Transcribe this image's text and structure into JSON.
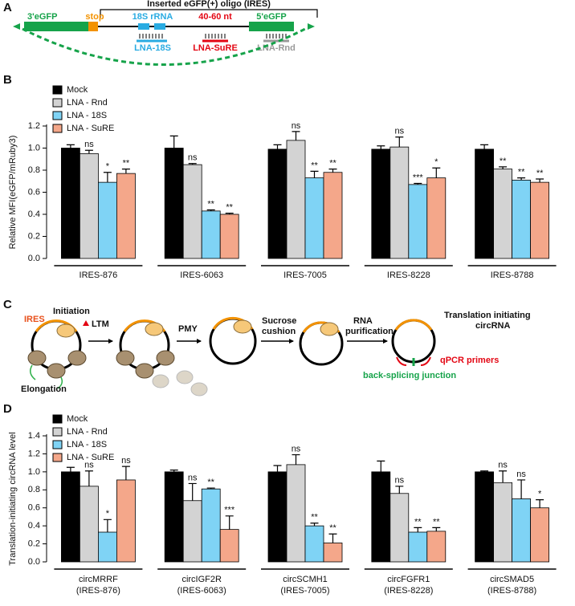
{
  "panel_a": {
    "letter": "A",
    "title": "Inserted eGFP(+) oligo (IRES)",
    "labels": {
      "egfp3": "3'eGFP",
      "stop": "stop",
      "rrna": "18S rRNA",
      "nt": "40-60 nt",
      "egfp5": "5'eGFP",
      "lna18s": "LNA-18S",
      "lnasure": "LNA-SuRE",
      "lnarnd": "LNA-Rnd"
    }
  },
  "panel_c": {
    "letter": "C",
    "labels": {
      "ires": "IRES",
      "initiation": "Initiation",
      "ltm": "LTM",
      "pmy": "PMY",
      "sucrose1": "Sucrose",
      "sucrose2": "cushion",
      "rna1": "RNA",
      "rna2": "purification",
      "trans1": "Translation initiating",
      "trans2": "circRNA",
      "qpcr": "qPCR primers",
      "junction": "back-splicing junction",
      "elongation": "Elongation"
    }
  },
  "chart_data": [
    {
      "type": "bar",
      "panel": "B",
      "y_label": "Relative MFI(eGFP/mRuby3)",
      "categories": [
        "IRES-876",
        "IRES-6063",
        "IRES-7005",
        "IRES-8228",
        "IRES-8788"
      ],
      "ylim": [
        0,
        1.2
      ],
      "yticks": [
        {
          "value": 0,
          "label": "0.0"
        },
        0.2,
        0.4,
        0.6,
        0.8,
        {
          "value": 1,
          "label": "1.0"
        },
        1.2
      ],
      "series": [
        {
          "name": "Mock",
          "color": "#000000",
          "values": [
            1.0,
            1.0,
            0.99,
            0.99,
            0.99
          ],
          "errors": [
            0.03,
            0.11,
            0.04,
            0.03,
            0.04
          ]
        },
        {
          "name": "LNA - Rnd",
          "color": "#d3d3d3",
          "values": [
            0.95,
            0.85,
            1.07,
            1.01,
            0.81
          ],
          "errors": [
            0.03,
            0.01,
            0.08,
            0.09,
            0.02
          ],
          "annotations": [
            "ns",
            "ns",
            "ns",
            "ns",
            "**"
          ]
        },
        {
          "name": "LNA - 18S",
          "color": "#7fd3f5",
          "values": [
            0.69,
            0.43,
            0.73,
            0.67,
            0.71
          ],
          "errors": [
            0.09,
            0.01,
            0.06,
            0.01,
            0.02
          ],
          "annotations": [
            "*",
            "**",
            "**",
            "***",
            "**"
          ]
        },
        {
          "name": "LNA - SuRE",
          "color": "#f4a78a",
          "values": [
            0.77,
            0.4,
            0.78,
            0.73,
            0.69
          ],
          "errors": [
            0.04,
            0.01,
            0.03,
            0.09,
            0.03
          ],
          "annotations": [
            "**",
            "**",
            "**",
            "*",
            "**"
          ]
        }
      ]
    },
    {
      "type": "bar",
      "panel": "D",
      "y_label": "Translation-initiating circRNA level",
      "categories": [
        "circMRRF",
        "circIGF2R",
        "circSCMH1",
        "circFGFR1",
        "circSMAD5"
      ],
      "category_sublabels": [
        "(IRES-876)",
        "(IRES-6063)",
        "(IRES-7005)",
        "(IRES-8228)",
        "(IRES-8788)"
      ],
      "ylim": [
        0,
        1.4
      ],
      "yticks": [
        {
          "value": 0,
          "label": "0.0"
        },
        0.2,
        0.4,
        0.6,
        0.8,
        {
          "value": 1,
          "label": "1.0"
        },
        1.2,
        1.4
      ],
      "series": [
        {
          "name": "Mock",
          "color": "#000000",
          "values": [
            1.0,
            1.0,
            1.0,
            1.0,
            1.0
          ],
          "errors": [
            0.05,
            0.02,
            0.07,
            0.12,
            0.01
          ]
        },
        {
          "name": "LNA - Rnd",
          "color": "#d3d3d3",
          "values": [
            0.84,
            0.68,
            1.08,
            0.76,
            0.88
          ],
          "errors": [
            0.17,
            0.19,
            0.11,
            0.08,
            0.13
          ],
          "annotations": [
            "ns",
            "ns",
            "ns",
            "ns",
            "ns"
          ]
        },
        {
          "name": "LNA - 18S",
          "color": "#7fd3f5",
          "values": [
            0.33,
            0.81,
            0.4,
            0.33,
            0.7
          ],
          "errors": [
            0.14,
            0.01,
            0.03,
            0.05,
            0.21
          ],
          "annotations": [
            "*",
            "**",
            "**",
            "**",
            "ns"
          ]
        },
        {
          "name": "LNA - SuRE",
          "color": "#f4a78a",
          "values": [
            0.91,
            0.36,
            0.21,
            0.34,
            0.6
          ],
          "errors": [
            0.15,
            0.15,
            0.1,
            0.04,
            0.09
          ],
          "annotations": [
            "ns",
            "***",
            "**",
            "**",
            "*"
          ]
        }
      ]
    }
  ]
}
